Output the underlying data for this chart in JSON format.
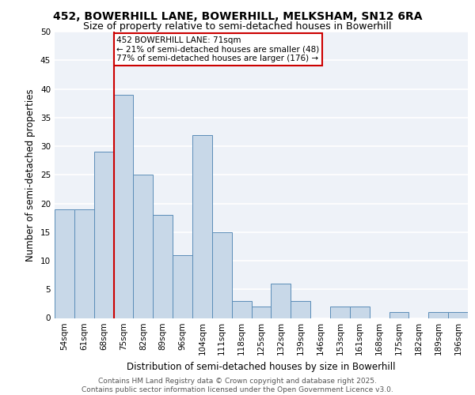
{
  "title_line1": "452, BOWERHILL LANE, BOWERHILL, MELKSHAM, SN12 6RA",
  "title_line2": "Size of property relative to semi-detached houses in Bowerhill",
  "xlabel": "Distribution of semi-detached houses by size in Bowerhill",
  "ylabel": "Number of semi-detached properties",
  "categories": [
    "54sqm",
    "61sqm",
    "68sqm",
    "75sqm",
    "82sqm",
    "89sqm",
    "96sqm",
    "104sqm",
    "111sqm",
    "118sqm",
    "125sqm",
    "132sqm",
    "139sqm",
    "146sqm",
    "153sqm",
    "161sqm",
    "168sqm",
    "175sqm",
    "182sqm",
    "189sqm",
    "196sqm"
  ],
  "values": [
    19,
    19,
    29,
    39,
    25,
    18,
    11,
    32,
    15,
    3,
    2,
    6,
    3,
    0,
    2,
    2,
    0,
    1,
    0,
    1,
    1
  ],
  "bar_color": "#c8d8e8",
  "bar_edge_color": "#5b8db8",
  "vline_x": 2.5,
  "vline_color": "#cc0000",
  "annotation_text": "452 BOWERHILL LANE: 71sqm\n← 21% of semi-detached houses are smaller (48)\n77% of semi-detached houses are larger (176) →",
  "annotation_box_color": "#ffffff",
  "annotation_box_edge": "#cc0000",
  "ylim": [
    0,
    50
  ],
  "yticks": [
    0,
    5,
    10,
    15,
    20,
    25,
    30,
    35,
    40,
    45,
    50
  ],
  "footer_text": "Contains HM Land Registry data © Crown copyright and database right 2025.\nContains public sector information licensed under the Open Government Licence v3.0.",
  "background_color": "#eef2f8",
  "grid_color": "#ffffff",
  "title_fontsize": 10,
  "subtitle_fontsize": 9,
  "axis_label_fontsize": 8.5,
  "tick_fontsize": 7.5,
  "annotation_fontsize": 7.5,
  "footer_fontsize": 6.5
}
